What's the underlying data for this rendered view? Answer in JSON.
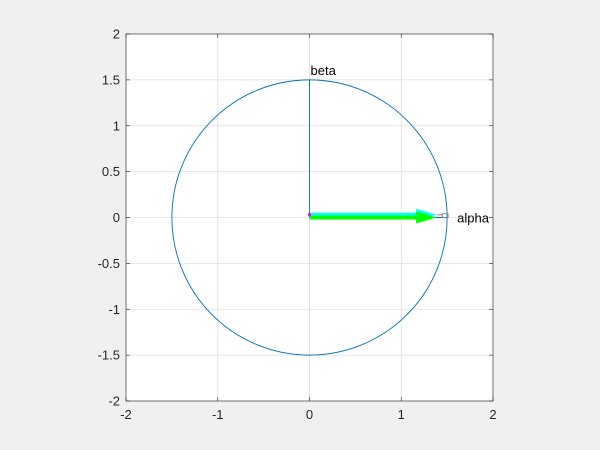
{
  "chart_data": {
    "type": "line",
    "title": "",
    "xlabel": "",
    "ylabel": "",
    "xlim": [
      -2,
      2
    ],
    "ylim": [
      -2,
      2
    ],
    "x_ticks": [
      -2,
      -1,
      0,
      1,
      2
    ],
    "y_ticks": [
      -2,
      -1.5,
      -1,
      -0.5,
      0,
      0.5,
      1,
      1.5,
      2
    ],
    "x_tick_labels": [
      "-2",
      "-1",
      "0",
      "1",
      "2"
    ],
    "y_tick_labels": [
      "-2",
      "-1.5",
      "-1",
      "-0.5",
      "0",
      "0.5",
      "1",
      "1.5",
      "2"
    ],
    "grid": true,
    "aspect": "equal",
    "circle": {
      "center": [
        0,
        0
      ],
      "radius": 1.5,
      "color": "#0072BD"
    },
    "axis_lines": [
      {
        "name": "beta-axis",
        "from": [
          0,
          0
        ],
        "to": [
          0,
          1.5
        ],
        "color": "#0072BD"
      },
      {
        "name": "alpha-axis",
        "from": [
          0,
          0
        ],
        "to": [
          1.5,
          0
        ],
        "color": "#0072BD"
      }
    ],
    "reference_line": {
      "from": [
        0,
        0.03
      ],
      "to": [
        1.45,
        0.03
      ],
      "color": "#7f7f7f",
      "style": "dashed"
    },
    "vectors": [
      {
        "name": "cyan-vector",
        "from": [
          0,
          0.03
        ],
        "to": [
          1.38,
          0.03
        ],
        "color": "#00FFFF"
      },
      {
        "name": "green-vector",
        "from": [
          0,
          0
        ],
        "to": [
          1.38,
          0
        ],
        "color": "#00FF00"
      }
    ],
    "origin_marker": {
      "at": [
        0,
        0.03
      ],
      "color": "#FF00FF"
    },
    "annotations": [
      {
        "text": "beta",
        "at": [
          0,
          1.5
        ]
      },
      {
        "text": "alpha",
        "at": [
          1.5,
          0
        ]
      }
    ]
  }
}
